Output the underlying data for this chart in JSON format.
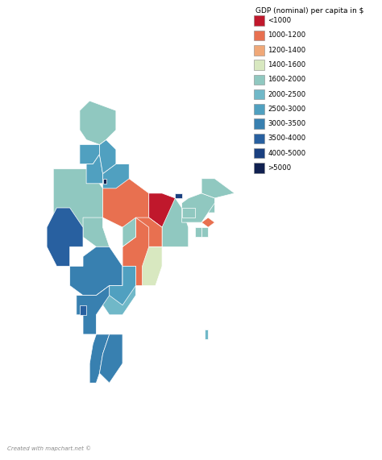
{
  "title": "GDP (nominal) per capita in $",
  "legend_entries": [
    {
      "label": "<1000",
      "color": "#c0182c"
    },
    {
      "label": "1000-1200",
      "color": "#e87050"
    },
    {
      "label": "1200-1400",
      "color": "#f0a878"
    },
    {
      "label": "1400-1600",
      "color": "#d8e8c0"
    },
    {
      "label": "1600-2000",
      "color": "#90c8c0"
    },
    {
      "label": "2000-2500",
      "color": "#70b8c8"
    },
    {
      "label": "2500-3000",
      "color": "#50a0c0"
    },
    {
      "label": "3000-3500",
      "color": "#3880b0"
    },
    {
      "label": "3500-4000",
      "color": "#2860a0"
    },
    {
      "label": "4000-5000",
      "color": "#1a4080"
    },
    {
      "label": ">5000",
      "color": "#102050"
    }
  ],
  "gdp_ranges": [
    [
      0,
      1000,
      "#c0182c"
    ],
    [
      1000,
      1200,
      "#e87050"
    ],
    [
      1200,
      1400,
      "#f0a878"
    ],
    [
      1400,
      1600,
      "#d8e8c0"
    ],
    [
      1600,
      2000,
      "#90c8c0"
    ],
    [
      2000,
      2500,
      "#70b8c8"
    ],
    [
      2500,
      3000,
      "#50a0c0"
    ],
    [
      3000,
      3500,
      "#3880b0"
    ],
    [
      3500,
      4000,
      "#2860a0"
    ],
    [
      4000,
      5000,
      "#1a4080"
    ],
    [
      5000,
      99999,
      "#102050"
    ]
  ],
  "state_gdp": {
    "Jammu and Kashmir": 1700,
    "Ladakh": 1700,
    "Himachal Pradesh": 2600,
    "Punjab": 2600,
    "Uttarakhand": 2600,
    "Haryana": 2600,
    "Delhi": 5500,
    "Rajasthan": 1800,
    "Uttar Pradesh": 1050,
    "Bihar": 600,
    "Sikkim": 4500,
    "Arunachal Pradesh": 1700,
    "Nagaland": 1700,
    "Manipur": 1050,
    "Mizoram": 1700,
    "Tripura": 1700,
    "Meghalaya": 1700,
    "Assam": 1700,
    "West Bengal": 1800,
    "Jharkhand": 1150,
    "Odisha": 1500,
    "Chhattisgarh": 1150,
    "Madhya Pradesh": 1700,
    "Gujarat": 3600,
    "Maharashtra": 3100,
    "Andhra Pradesh": 2100,
    "Karnataka": 3100,
    "Goa": 3600,
    "Kerala": 3100,
    "Tamil Nadu": 3100,
    "Telangana": 2600,
    "Daman and Diu": 3600,
    "Dadra and Nagar Haveli": 3600,
    "Puducherry": 2600,
    "Lakshadweep": 2100,
    "Andaman and Nicobar": 2100
  },
  "background_color": "#ffffff",
  "footer_text": "Created with mapchart.net ©",
  "edge_color": "#ffffff",
  "edge_width": 0.5
}
